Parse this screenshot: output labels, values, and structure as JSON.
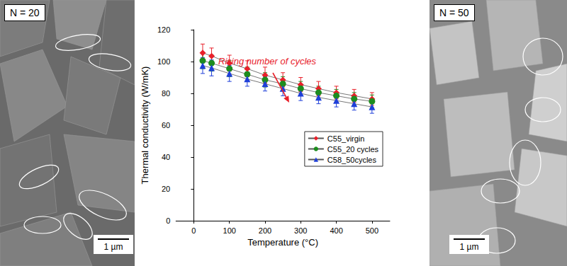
{
  "chart_data": {
    "type": "line",
    "x_label": "Temperature (°C)",
    "y_label": "Thermal conductivity (W/mK)",
    "annotation": "Rising number of cycles",
    "x": [
      25,
      50,
      100,
      150,
      200,
      250,
      300,
      350,
      400,
      450,
      500
    ],
    "xlim": [
      -50,
      550
    ],
    "xticks": [
      0,
      100,
      200,
      300,
      400,
      500
    ],
    "ylim": [
      0,
      120
    ],
    "yticks": [
      0,
      20,
      40,
      60,
      80,
      100,
      120
    ],
    "grid": false,
    "legend": "lower right",
    "series": [
      {
        "name": "C55_virgin",
        "color": "#e8202a",
        "marker": "diamond",
        "line_style": "solid",
        "values": [
          105.5,
          103.5,
          99,
          95.5,
          91.5,
          88.5,
          85.5,
          83,
          80.5,
          78.5,
          76.5
        ],
        "errors": [
          5.5,
          5,
          5,
          5,
          5,
          4.5,
          4.5,
          4.5,
          4,
          4,
          4
        ]
      },
      {
        "name": "C55_20 cycles",
        "color": "#1e8c1e",
        "marker": "circle",
        "line_style": "solid",
        "values": [
          100.5,
          99,
          95.5,
          92,
          88.5,
          86,
          83,
          80.5,
          78.5,
          76.5,
          75
        ],
        "errors": [
          5,
          5,
          5,
          4.5,
          4.5,
          4.5,
          4.5,
          4,
          4,
          4,
          4
        ]
      },
      {
        "name": "C58_50cycles",
        "color": "#1f3fd9",
        "marker": "triangle",
        "line_style": "solid",
        "values": [
          97.5,
          96,
          92.5,
          89,
          86,
          83,
          80,
          77.5,
          75.5,
          73.5,
          71.5
        ],
        "errors": [
          5,
          5,
          5,
          4.5,
          4.5,
          4.5,
          4.5,
          4,
          4,
          4,
          4
        ]
      }
    ]
  },
  "panels": [
    {
      "label": "N = 20",
      "scale_bar": "1 µm"
    },
    {
      "label": "N = 50",
      "scale_bar": "1 µm"
    }
  ]
}
